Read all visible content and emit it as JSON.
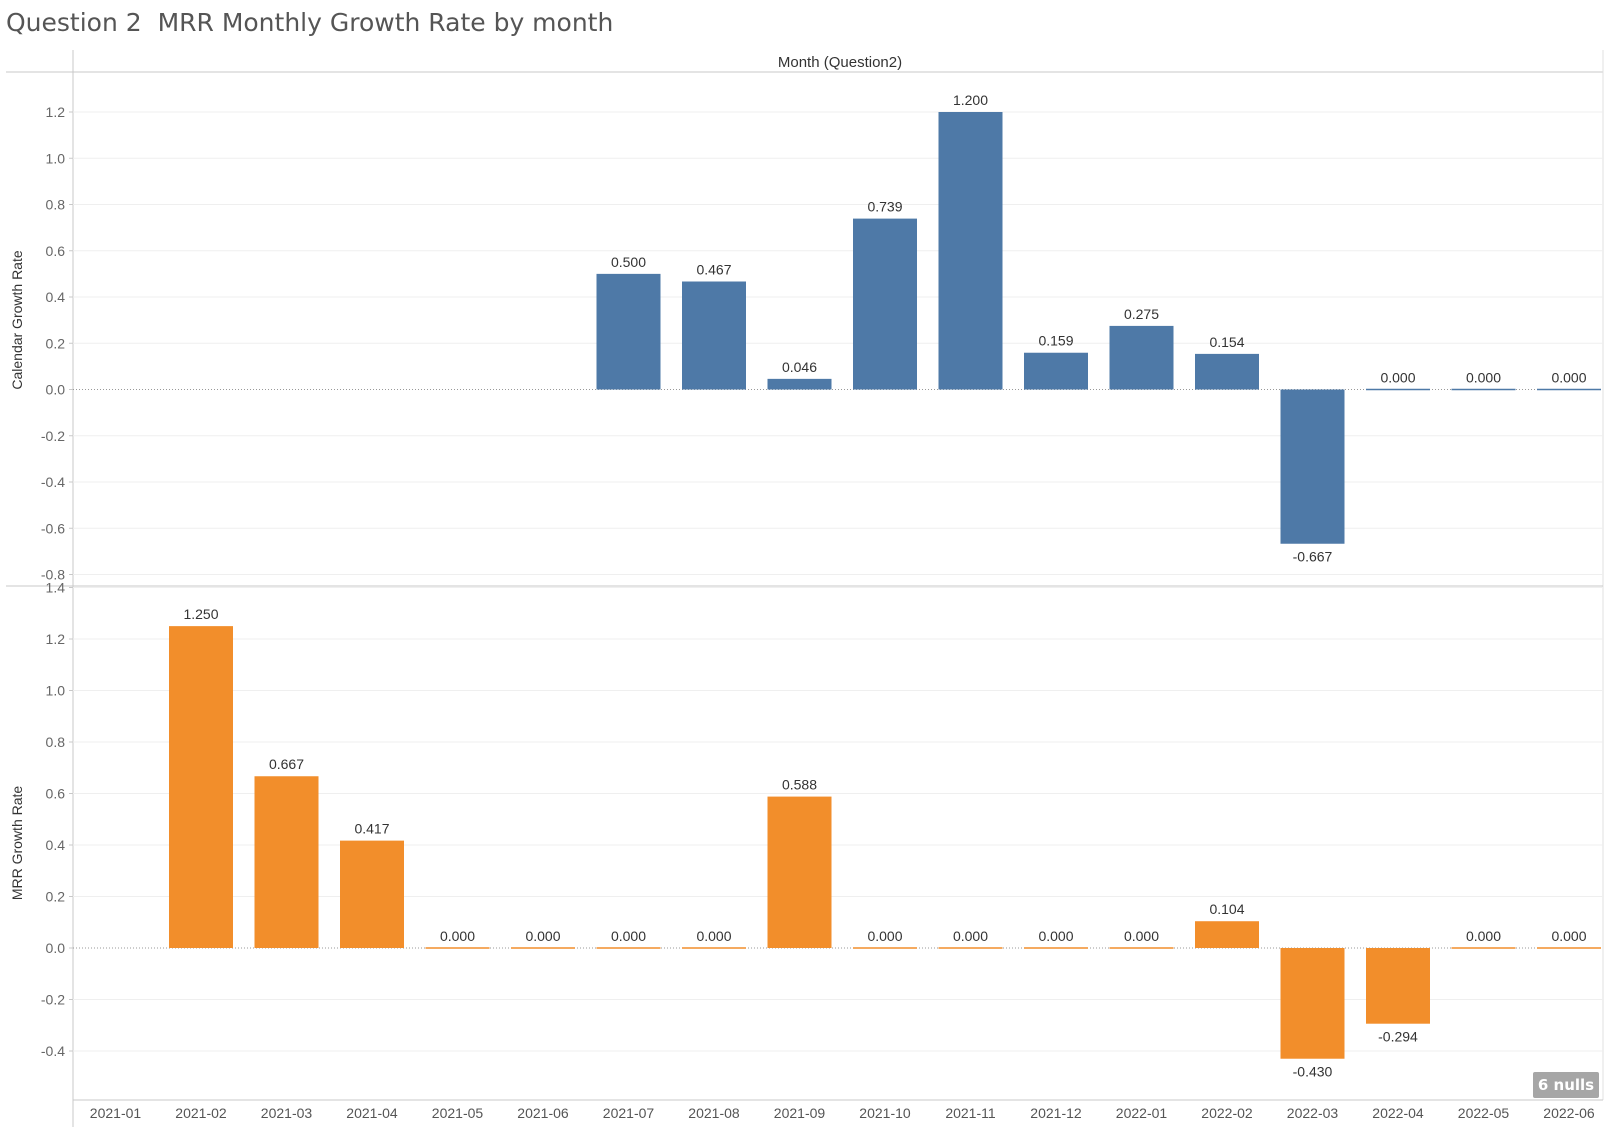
{
  "title": "Question 2  MRR Monthly Growth Rate by month",
  "header_label": "Month (Question2)",
  "nulls_badge": "6 nulls",
  "colors": {
    "series1": "#4E79A7",
    "series2": "#F28E2B"
  },
  "chart_data": [
    {
      "type": "bar",
      "ylabel": "Calendar Growth Rate",
      "xlabel": "",
      "categories": [
        "2021-01",
        "2021-02",
        "2021-03",
        "2021-04",
        "2021-05",
        "2021-06",
        "2021-07",
        "2021-08",
        "2021-09",
        "2021-10",
        "2021-11",
        "2021-12",
        "2022-01",
        "2022-02",
        "2022-03",
        "2022-04",
        "2022-05",
        "2022-06"
      ],
      "values": [
        null,
        null,
        null,
        null,
        null,
        null,
        0.5,
        0.467,
        0.046,
        0.739,
        1.2,
        0.159,
        0.275,
        0.154,
        -0.667,
        0.0,
        0.0,
        0.0
      ],
      "labels": [
        null,
        null,
        null,
        null,
        null,
        null,
        "0.500",
        "0.467",
        "0.046",
        "0.739",
        "1.200",
        "0.159",
        "0.275",
        "0.154",
        "-0.667",
        "0.000",
        "0.000",
        "0.000"
      ],
      "yticks": [
        1.2,
        1.0,
        0.8,
        0.6,
        0.4,
        0.2,
        0.0,
        -0.2,
        -0.4,
        -0.6,
        -0.8
      ],
      "ytick_labels": [
        "1.2",
        "1.0",
        "0.8",
        "0.6",
        "0.4",
        "0.2",
        "0.0",
        "-0.2",
        "-0.4",
        "-0.6",
        "-0.8"
      ],
      "color": "#4E79A7",
      "grid": true
    },
    {
      "type": "bar",
      "ylabel": "MRR Growth Rate",
      "xlabel": "",
      "categories": [
        "2021-01",
        "2021-02",
        "2021-03",
        "2021-04",
        "2021-05",
        "2021-06",
        "2021-07",
        "2021-08",
        "2021-09",
        "2021-10",
        "2021-11",
        "2021-12",
        "2022-01",
        "2022-02",
        "2022-03",
        "2022-04",
        "2022-05",
        "2022-06"
      ],
      "values": [
        null,
        1.25,
        0.667,
        0.417,
        0.0,
        0.0,
        0.0,
        0.0,
        0.588,
        0.0,
        0.0,
        0.0,
        0.0,
        0.104,
        -0.43,
        -0.294,
        0.0,
        0.0
      ],
      "labels": [
        null,
        "1.250",
        "0.667",
        "0.417",
        "0.000",
        "0.000",
        "0.000",
        "0.000",
        "0.588",
        "0.000",
        "0.000",
        "0.000",
        "0.000",
        "0.104",
        "-0.430",
        "-0.294",
        "0.000",
        "0.000"
      ],
      "yticks": [
        1.4,
        1.2,
        1.0,
        0.8,
        0.6,
        0.4,
        0.2,
        0.0,
        -0.2,
        -0.4
      ],
      "ytick_labels": [
        "1.4",
        "1.2",
        "1.0",
        "0.8",
        "0.6",
        "0.4",
        "0.2",
        "0.0",
        "-0.2",
        "-0.4"
      ],
      "color": "#F28E2B",
      "grid": true
    }
  ]
}
